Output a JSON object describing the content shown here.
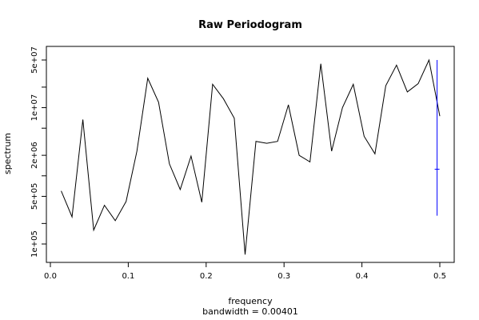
{
  "chart_data": {
    "type": "line",
    "title": "Raw Periodogram",
    "xlabel": "frequency",
    "subtitle": "bandwidth = 0.00401",
    "ylabel": "spectrum",
    "y_scale": "log",
    "xlim": [
      0.0,
      0.52
    ],
    "ylim": [
      70000,
      90000000
    ],
    "x_ticks": [
      {
        "value": 0.0,
        "label": "0.0"
      },
      {
        "value": 0.1,
        "label": "0.1"
      },
      {
        "value": 0.2,
        "label": "0.2"
      },
      {
        "value": 0.3,
        "label": "0.3"
      },
      {
        "value": 0.4,
        "label": "0.4"
      },
      {
        "value": 0.5,
        "label": "0.5"
      }
    ],
    "y_major_ticks": [
      {
        "value": 100000,
        "label": "1e+05"
      },
      {
        "value": 500000,
        "label": "5e+05"
      },
      {
        "value": 2000000,
        "label": "2e+06"
      },
      {
        "value": 10000000,
        "label": "1e+07"
      },
      {
        "value": 50000000,
        "label": "5e+07"
      }
    ],
    "y_minor_ticks": [
      200000,
      1000000,
      5000000,
      20000000
    ],
    "line_color": "#000000",
    "ci_color": "#0000ff",
    "series": [
      {
        "x": [
          0.0139,
          0.0278,
          0.0417,
          0.0556,
          0.0694,
          0.0833,
          0.0972,
          0.1111,
          0.125,
          0.1389,
          0.1528,
          0.1667,
          0.1806,
          0.1944,
          0.2083,
          0.2222,
          0.2361,
          0.25,
          0.2639,
          0.2778,
          0.2917,
          0.3056,
          0.3194,
          0.3333,
          0.3472,
          0.3611,
          0.375,
          0.3889,
          0.4028,
          0.4167,
          0.4306,
          0.4444,
          0.4583,
          0.4722,
          0.4861,
          0.5
        ],
        "y": [
          600000,
          250000,
          6700000,
          160000,
          370000,
          220000,
          420000,
          2300000,
          27000000,
          12000000,
          1500000,
          630000,
          1950000,
          410000,
          22000000,
          13500000,
          7000000,
          70000,
          3200000,
          3000000,
          3200000,
          11000000,
          2000000,
          1600000,
          44000000,
          2300000,
          10000000,
          22000000,
          3800000,
          2100000,
          21000000,
          42000000,
          17000000,
          22500000,
          50000000,
          7500000
        ]
      }
    ],
    "confidence_bar": {
      "x": 0.4965,
      "y_low": 260000,
      "y_center": 1250000,
      "y_high": 50000000
    }
  }
}
